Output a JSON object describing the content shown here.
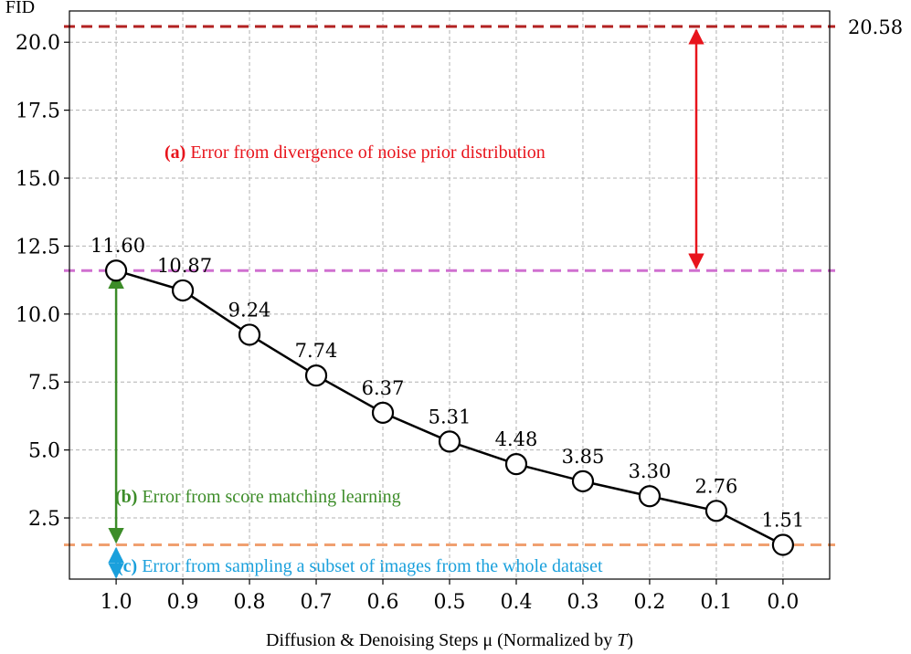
{
  "chart_data": {
    "type": "line",
    "ylabel": "FID",
    "xlabel_main": "Diffusion & Denoising Steps μ (Normalized by ",
    "xlabel_T": "T",
    "xlabel_end": ")",
    "x": [
      1.0,
      0.9,
      0.8,
      0.7,
      0.6,
      0.5,
      0.4,
      0.3,
      0.2,
      0.1,
      0.0
    ],
    "x_tick_labels": [
      "1.0",
      "0.9",
      "0.8",
      "0.7",
      "0.6",
      "0.5",
      "0.4",
      "0.3",
      "0.2",
      "0.1",
      "0.0"
    ],
    "y": [
      11.6,
      10.87,
      9.24,
      7.74,
      6.37,
      5.31,
      4.48,
      3.85,
      3.3,
      2.76,
      1.51
    ],
    "data_labels": [
      "11.60",
      "10.87",
      "9.24",
      "7.74",
      "6.37",
      "5.31",
      "4.48",
      "3.85",
      "3.30",
      "2.76",
      "1.51"
    ],
    "y_ticks": [
      2.5,
      5.0,
      7.5,
      10.0,
      12.5,
      15.0,
      17.5,
      20.0
    ],
    "y_tick_labels": [
      "2.5",
      "5.0",
      "7.5",
      "10.0",
      "12.5",
      "15.0",
      "17.5",
      "20.0"
    ],
    "ylim": [
      0.25,
      21.15
    ],
    "xlim": [
      1.07,
      -0.07
    ],
    "x_reversed": true,
    "grid": true,
    "reference_lines": [
      {
        "value": 20.58,
        "label": "20.58",
        "color": "#b22222"
      },
      {
        "value": 11.6,
        "label": "",
        "color": "#d070d0"
      },
      {
        "value": 1.51,
        "label": "",
        "color": "#f0a070"
      }
    ],
    "annotations": {
      "a": {
        "tag": "(a)",
        "text": " Error from divergence of noise prior distribution",
        "color": "#e8141c"
      },
      "b": {
        "tag": "(b)",
        "text": " Error from score matching learning",
        "color": "#3c8c28"
      },
      "c": {
        "tag": "(c)",
        "text": " Error from sampling a subset of images from the whole dataset",
        "color": "#1aa0dc"
      }
    }
  }
}
